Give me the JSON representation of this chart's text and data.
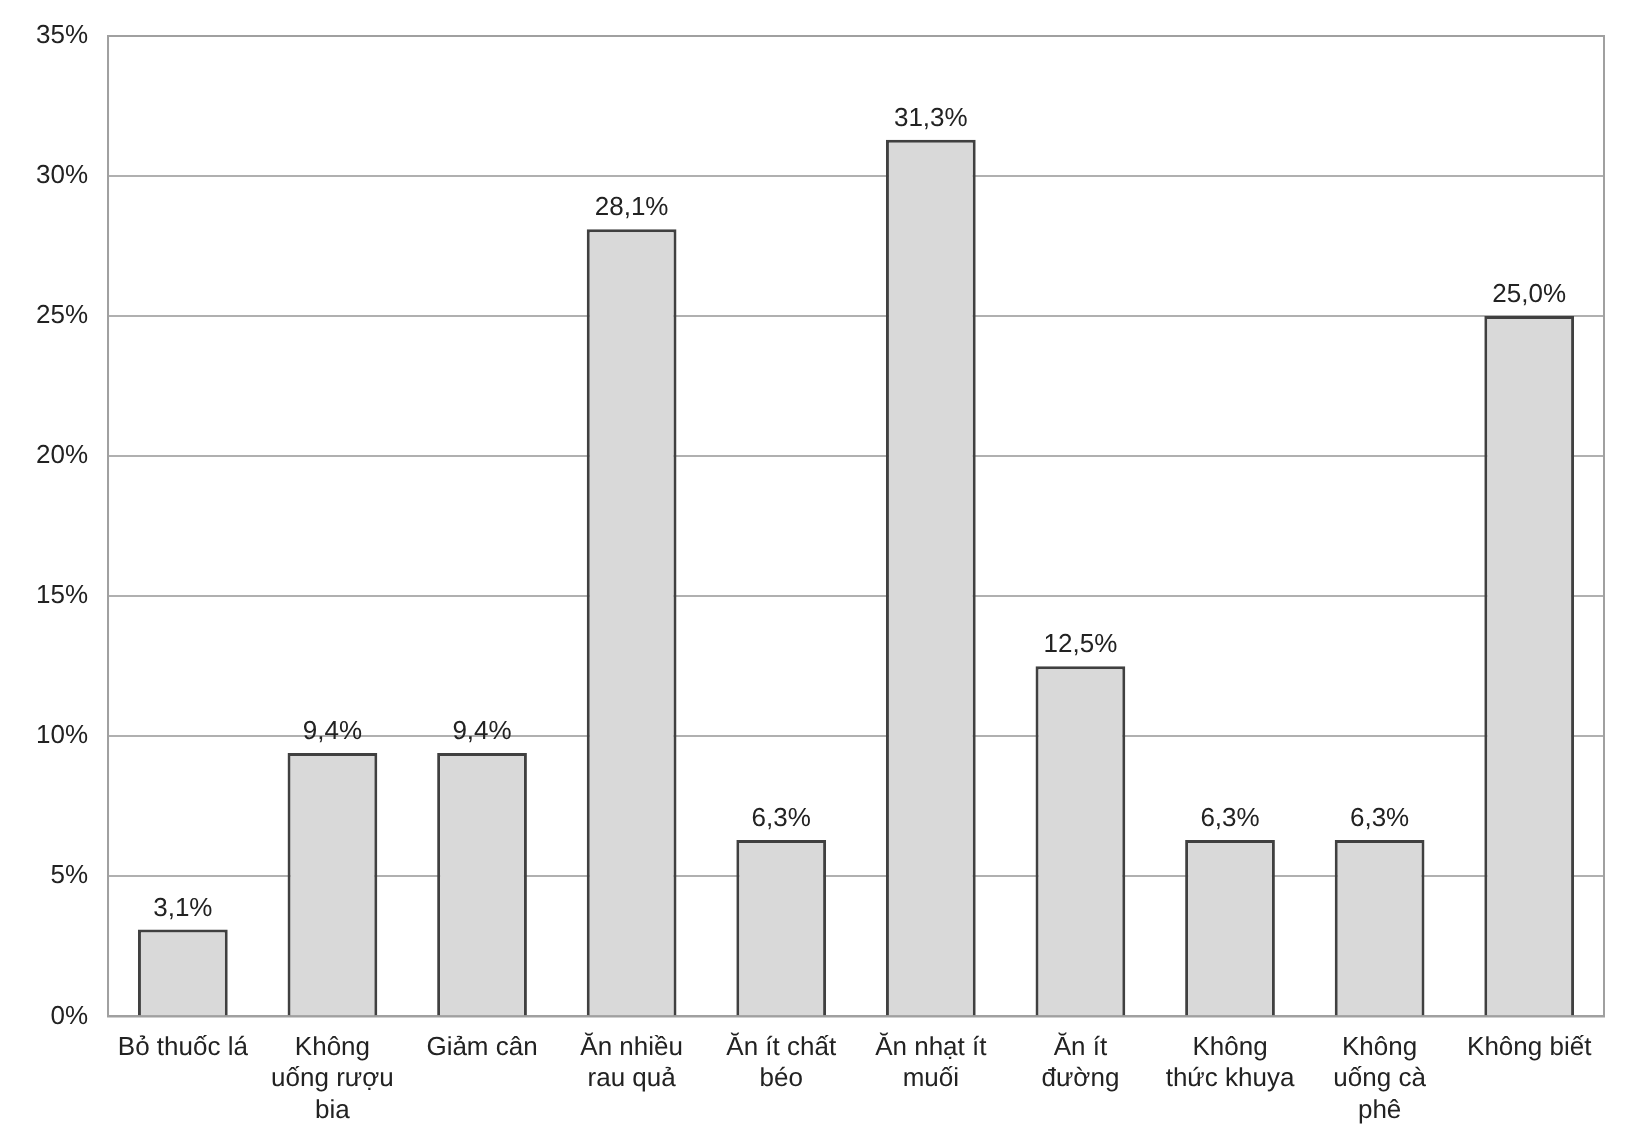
{
  "chart_data": {
    "type": "bar",
    "categories": [
      "Bỏ thuốc lá",
      "Không uống rượu bia",
      "Giảm cân",
      "Ăn nhiều rau quả",
      "Ăn ít chất béo",
      "Ăn nhạt ít muối",
      "Ăn ít đường",
      "Không thức khuya",
      "Không uống cà phê",
      "Không biết"
    ],
    "values": [
      3.1,
      9.4,
      9.4,
      28.1,
      6.3,
      31.3,
      12.5,
      6.3,
      6.3,
      25.0
    ],
    "value_labels": [
      "3,1%",
      "9,4%",
      "9,4%",
      "28,1%",
      "6,3%",
      "31,3%",
      "12,5%",
      "6,3%",
      "6,3%",
      "25,0%"
    ],
    "color": "#d9d9d9",
    "ylim": [
      0,
      35
    ],
    "yticks": [
      {
        "value": 0,
        "label": "0%"
      },
      {
        "value": 5,
        "label": "5%"
      },
      {
        "value": 10,
        "label": "10%"
      },
      {
        "value": 15,
        "label": "15%"
      },
      {
        "value": 20,
        "label": "20%"
      },
      {
        "value": 25,
        "label": "25%"
      },
      {
        "value": 30,
        "label": "30%"
      },
      {
        "value": 35,
        "label": "35%"
      }
    ],
    "grid": "y",
    "legend": false
  }
}
